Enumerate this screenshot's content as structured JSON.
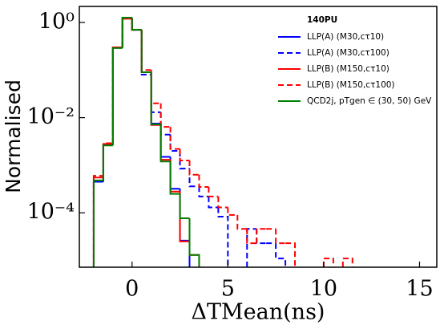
{
  "chart_data": {
    "type": "step-histogram",
    "xlabel": "ΔTMean(ns)",
    "ylabel": "Normalised",
    "legend_title": "140PU",
    "legend_position": "upper right",
    "log_y": true,
    "xlim": [
      -2.75,
      15.9
    ],
    "ylim": [
      7.2e-06,
      2.17
    ],
    "xticks": [
      0,
      5,
      10,
      15
    ],
    "yticks": [
      {
        "value": 1,
        "label": "10⁰"
      },
      {
        "value": 0.01,
        "label": "10⁻²"
      },
      {
        "value": 0.0001,
        "label": "10⁻⁴"
      }
    ],
    "bins": [
      -2,
      -1.5,
      -1,
      -0.5,
      0,
      0.5,
      1,
      1.5,
      2,
      2.5,
      3,
      3.5,
      4,
      4.5,
      5,
      5.5,
      6,
      6.5,
      7,
      7.5,
      8,
      8.5,
      9,
      9.5,
      10,
      10.5,
      11,
      11.5,
      12
    ],
    "series": [
      {
        "name": "LLP(A) (M30,cτ10)",
        "color": "#0000ff",
        "dashed": false,
        "values": [
          0.00045,
          0.0027,
          0.3,
          1.25,
          0.7,
          0.09,
          0.0075,
          0.0015,
          0.00032,
          2.6e-05,
          null,
          null,
          null,
          null,
          null,
          null,
          null,
          null,
          null,
          null,
          null,
          null,
          null,
          null,
          null,
          null,
          null,
          null
        ]
      },
      {
        "name": "LLP(A) (M30,cτ100)",
        "color": "#0000ff",
        "dashed": true,
        "values": [
          0.00046,
          0.0027,
          0.3,
          1.25,
          0.7,
          0.08,
          0.013,
          0.0044,
          0.002,
          0.00085,
          0.00036,
          0.00022,
          0.00013,
          8.3e-05,
          null,
          null,
          4.6e-05,
          2.3e-05,
          2.3e-05,
          1.1e-05,
          null,
          null,
          null,
          null,
          null,
          null,
          null,
          null
        ]
      },
      {
        "name": "LLP(B) (M150,cτ10)",
        "color": "#ff0000",
        "dashed": false,
        "values": [
          0.00055,
          0.0028,
          0.3,
          1.2,
          0.7,
          0.09,
          0.007,
          0.0013,
          0.00028,
          2.5e-05,
          1.3e-05,
          null,
          null,
          null,
          null,
          null,
          null,
          null,
          null,
          null,
          null,
          null,
          null,
          null,
          null,
          null,
          null,
          null
        ]
      },
      {
        "name": "LLP(B) (M150,cτ100)",
        "color": "#ff0000",
        "dashed": true,
        "values": [
          0.0006,
          0.0029,
          0.3,
          1.2,
          0.7,
          0.1,
          0.02,
          0.0064,
          0.0022,
          0.00126,
          0.00063,
          0.00035,
          0.00022,
          0.00013,
          9e-05,
          4.6e-05,
          2.3e-05,
          4.6e-05,
          4.6e-05,
          2.3e-05,
          2.3e-05,
          null,
          null,
          null,
          1.1e-05,
          null,
          1.1e-05,
          null
        ]
      },
      {
        "name": "QCD2j, pTgen ∈ (30, 50) GeV",
        "color": "#007f00",
        "dashed": false,
        "values": [
          0.00048,
          0.0026,
          0.29,
          1.26,
          0.7,
          0.09,
          0.0072,
          0.0012,
          0.00025,
          7.7e-05,
          1.3e-05,
          null,
          null,
          null,
          null,
          null,
          null,
          null,
          null,
          null,
          null,
          null,
          null,
          null,
          null,
          null,
          null,
          null
        ]
      }
    ]
  }
}
